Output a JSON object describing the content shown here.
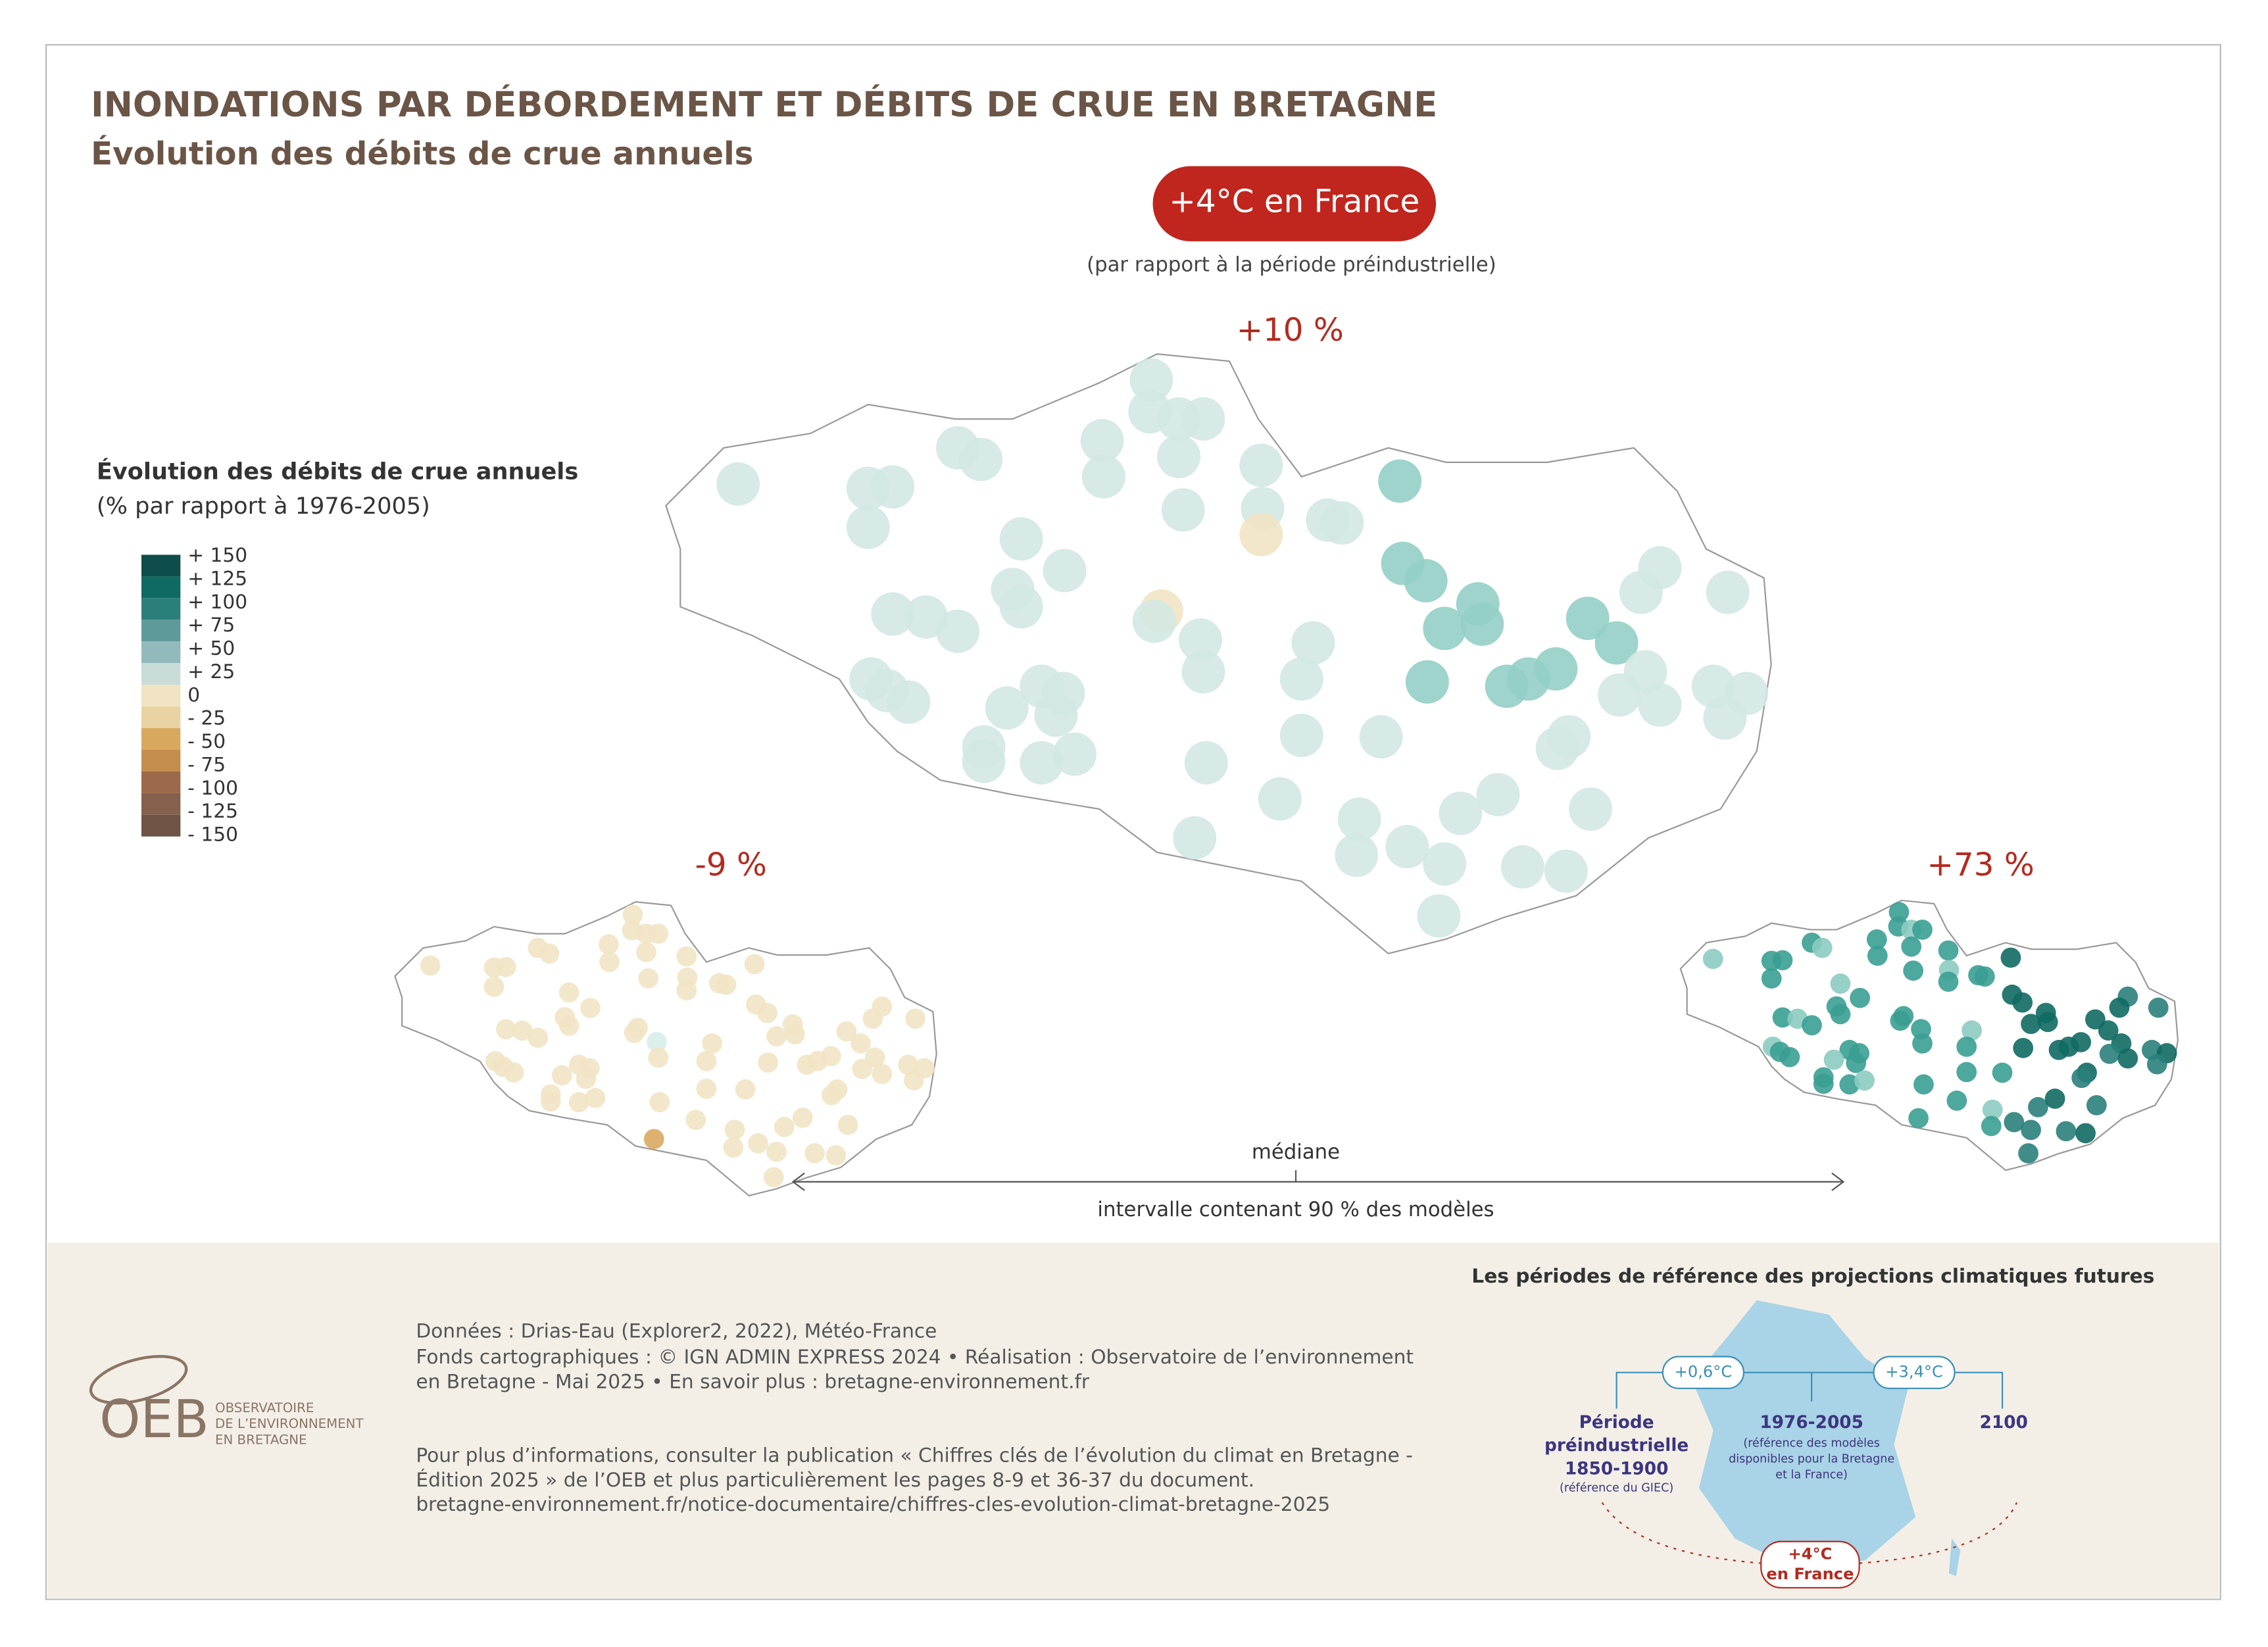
{
  "header": {
    "title": "INONDATIONS PAR DÉBORDEMENT ET DÉBITS DE CRUE EN BRETAGNE",
    "subtitle": "Évolution des débits de crue annuels"
  },
  "scenario": {
    "badge": "+4°C en France",
    "note": "(par rapport à la période préindustrielle)"
  },
  "maps": [
    {
      "label": "+10 %"
    },
    {
      "label": "-9 %"
    },
    {
      "label": "+73 %"
    }
  ],
  "legend": {
    "title": "Évolution des débits de crue annuels",
    "subtitle": "(% par rapport à 1976-2005)",
    "classes": [
      {
        "label": "+ 150",
        "color": "#0e4d49"
      },
      {
        "label": "+ 125",
        "color": "#0f6a63"
      },
      {
        "label": "+ 100",
        "color": "#2a7f7b"
      },
      {
        "label": "+ 75",
        "color": "#5f9a9a"
      },
      {
        "label": "+ 50",
        "color": "#92b9bc"
      },
      {
        "label": "+ 25",
        "color": "#c9dcd8"
      },
      {
        "label": "0",
        "color": "#f1e4c4"
      },
      {
        "label": "- 25",
        "color": "#ead3a2"
      },
      {
        "label": "- 50",
        "color": "#d9a85f"
      },
      {
        "label": "- 75",
        "color": "#c48d4e"
      },
      {
        "label": "- 100",
        "color": "#9c6a4a"
      },
      {
        "label": "- 125",
        "color": "#85604c"
      },
      {
        "label": "- 150",
        "color": "#6f5344"
      }
    ]
  },
  "range": {
    "median": "médiane",
    "interval": "intervalle contenant 90 % des modèles"
  },
  "footer": {
    "sources": [
      "Données : Drias-Eau (Explorer2, 2022), Météo-France",
      "Fonds cartographiques : © IGN ADMIN EXPRESS 2024 • Réalisation : Observatoire de l’environnement",
      "en Bretagne - Mai 2025 • En savoir plus : bretagne-environnement.fr"
    ],
    "info": [
      "Pour plus d’informations, consulter la publication « Chiffres clés de l’évolution du climat en Bretagne -",
      "Édition 2025 » de l’OEB et plus particulièrement les pages 8-9 et 36-37 du document.",
      "bretagne-environnement.fr/notice-documentaire/chiffres-cles-evolution-climat-bretagne-2025"
    ],
    "logo": "OEB",
    "logo_lines": [
      "OBSERVATOIRE",
      "DE L’ENVIRONNEMENT",
      "EN BRETAGNE"
    ]
  },
  "inset": {
    "title": "Les périodes de référence des projections climatiques futures",
    "warm1": "+0,6°C",
    "warm2": "+3,4°C",
    "p1": [
      "Période",
      "préindustrielle",
      "1850-1900"
    ],
    "p1_note": "(référence du GIEC)",
    "p2": "1976-2005",
    "p2_note": [
      "(référence des modèles",
      "disponibles pour la Bretagne",
      "et la France)"
    ],
    "p3": "2100",
    "badge": [
      "+4°C",
      "en France"
    ]
  }
}
